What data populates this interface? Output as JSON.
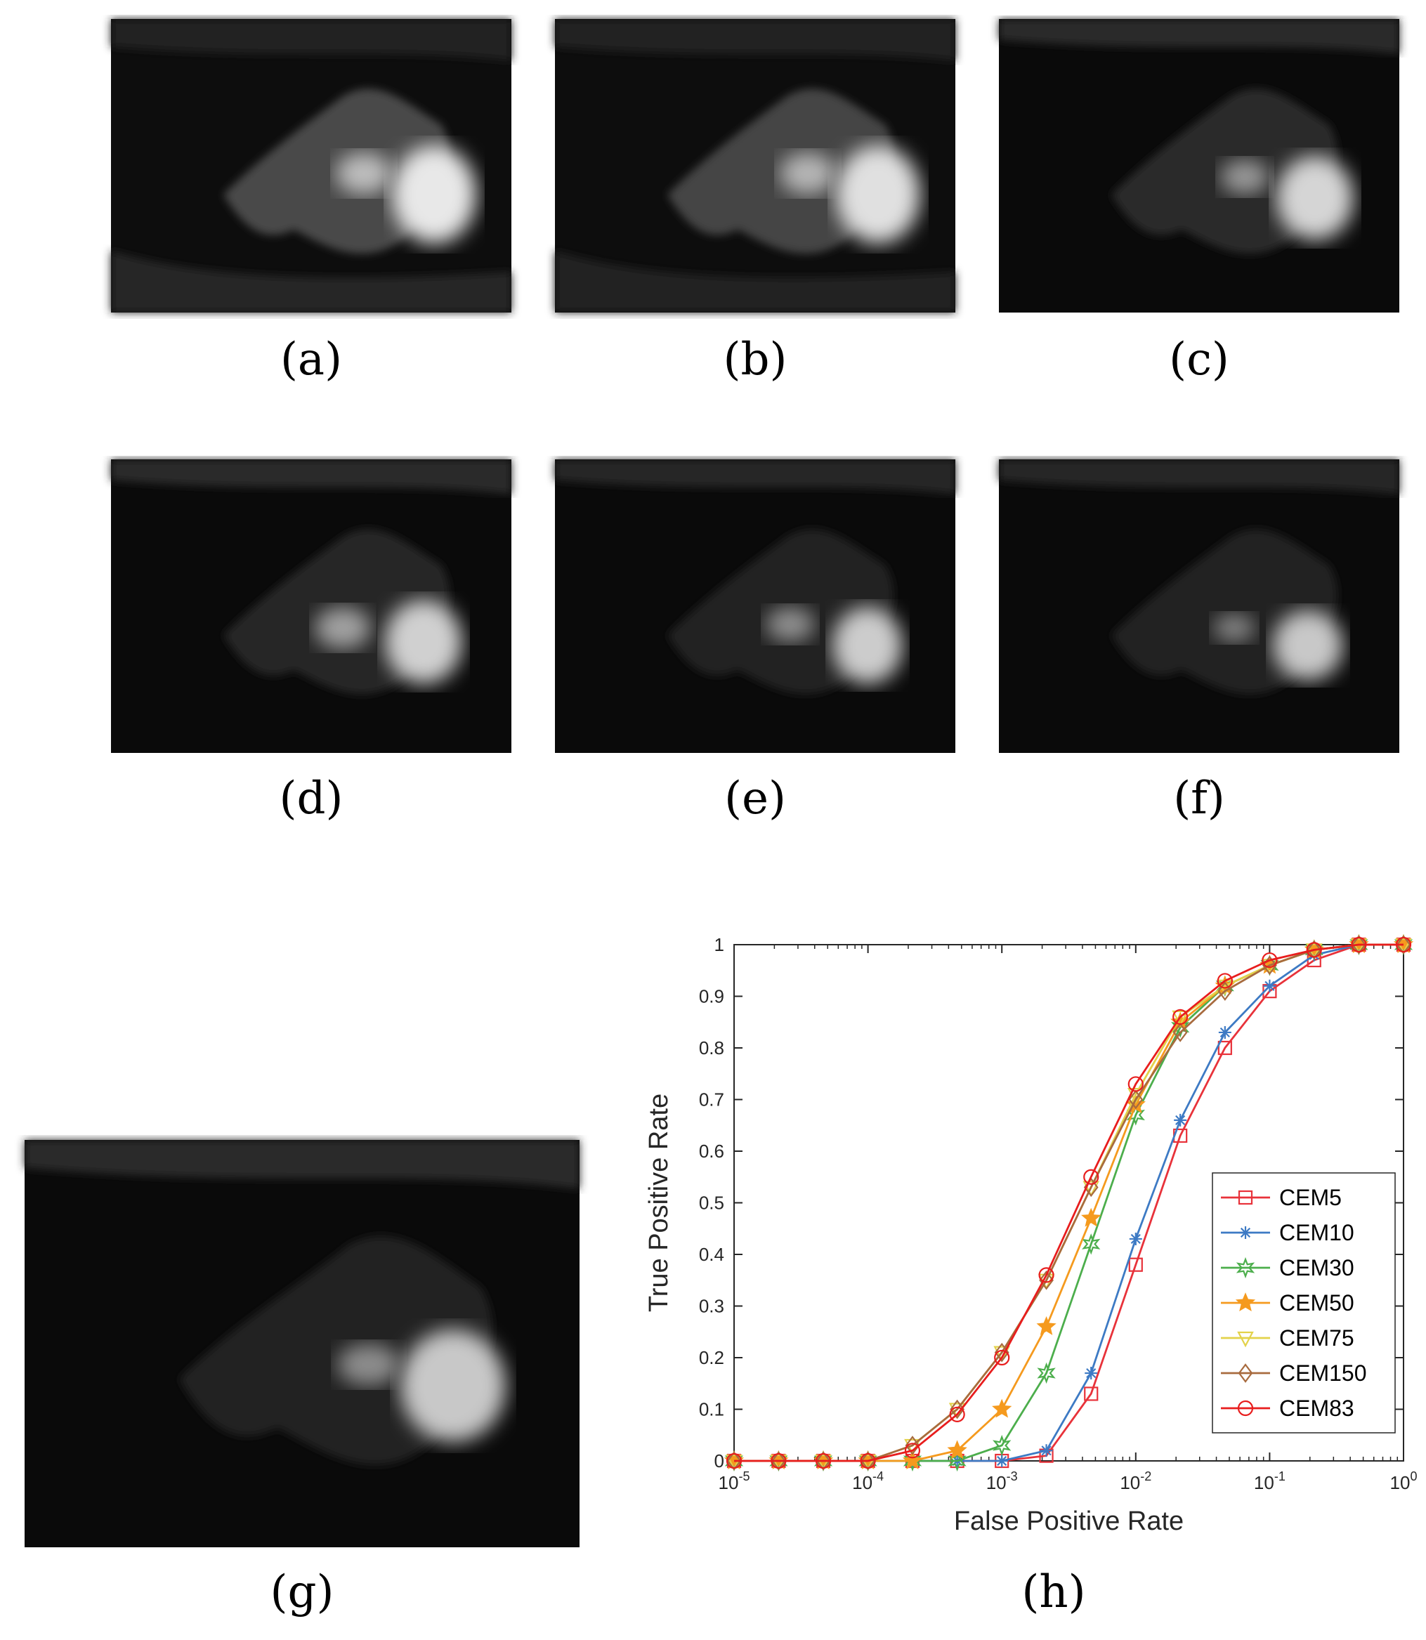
{
  "captions": {
    "a": "(a)",
    "b": "(b)",
    "c": "(c)",
    "d": "(d)",
    "e": "(e)",
    "f": "(f)",
    "g": "(g)",
    "h": "(h)"
  },
  "chart_data": {
    "type": "line",
    "title": "",
    "xlabel": "False Positive Rate",
    "ylabel": "True Positive Rate",
    "xscale": "log",
    "xlim": [
      1e-05,
      1
    ],
    "ylim": [
      0,
      1
    ],
    "x_tick_labels": [
      "10-5",
      "10-4",
      "10-3",
      "10-2",
      "10-1",
      "100"
    ],
    "y_tick_labels": [
      "0",
      "0.1",
      "0.2",
      "0.3",
      "0.4",
      "0.5",
      "0.6",
      "0.7",
      "0.8",
      "0.9",
      "1"
    ],
    "legend_position": "bottom-right",
    "x": [
      1e-05,
      2.15e-05,
      4.64e-05,
      0.0001,
      0.000215,
      0.000464,
      0.001,
      0.00215,
      0.00464,
      0.01,
      0.0215,
      0.0464,
      0.1,
      0.215,
      0.464,
      1
    ],
    "series": [
      {
        "name": "CEM5",
        "color": "#e8323a",
        "marker": "square",
        "values": [
          0,
          0,
          0,
          0,
          0,
          0,
          0,
          0.01,
          0.13,
          0.38,
          0.63,
          0.8,
          0.91,
          0.97,
          1.0,
          1.0
        ]
      },
      {
        "name": "CEM10",
        "color": "#3d7ac4",
        "marker": "asterisk",
        "values": [
          0,
          0,
          0,
          0,
          0,
          0,
          0,
          0.02,
          0.17,
          0.43,
          0.66,
          0.83,
          0.92,
          0.98,
          1.0,
          1.0
        ]
      },
      {
        "name": "CEM30",
        "color": "#4cae4c",
        "marker": "hexagram",
        "values": [
          0,
          0,
          0,
          0,
          0,
          0,
          0.03,
          0.17,
          0.42,
          0.67,
          0.84,
          0.92,
          0.96,
          0.99,
          1.0,
          1.0
        ]
      },
      {
        "name": "CEM50",
        "color": "#f59a1e",
        "marker": "pentagram",
        "values": [
          0,
          0,
          0,
          0,
          0,
          0.02,
          0.1,
          0.26,
          0.47,
          0.69,
          0.85,
          0.92,
          0.96,
          0.99,
          1.0,
          1.0
        ]
      },
      {
        "name": "CEM75",
        "color": "#e3d24a",
        "marker": "triangle-down",
        "values": [
          0,
          0,
          0,
          0,
          0.03,
          0.1,
          0.21,
          0.35,
          0.53,
          0.71,
          0.86,
          0.92,
          0.96,
          0.99,
          1.0,
          1.0
        ]
      },
      {
        "name": "CEM150",
        "color": "#a86b3e",
        "marker": "diamond",
        "values": [
          0,
          0,
          0,
          0,
          0.03,
          0.1,
          0.21,
          0.35,
          0.53,
          0.7,
          0.83,
          0.91,
          0.96,
          0.99,
          1.0,
          1.0
        ]
      },
      {
        "name": "CEM83",
        "color": "#e81d1d",
        "marker": "circle",
        "values": [
          0,
          0,
          0,
          0,
          0.02,
          0.09,
          0.2,
          0.36,
          0.55,
          0.73,
          0.86,
          0.93,
          0.97,
          0.99,
          1.0,
          1.0
        ]
      }
    ]
  }
}
